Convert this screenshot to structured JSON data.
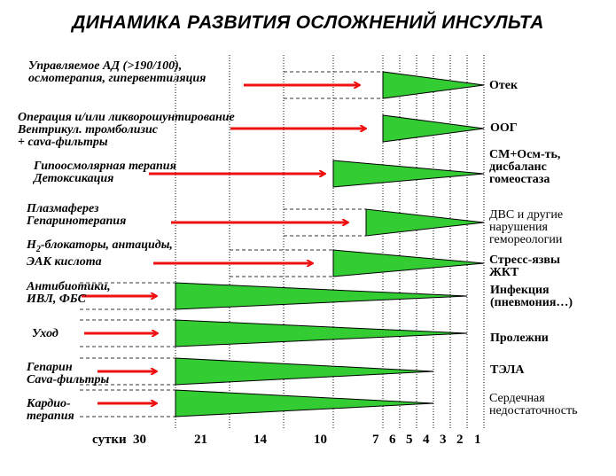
{
  "title": "ДИНАМИКА РАЗВИТИЯ ОСЛОЖНЕНИЙ ИНСУЛЬТА",
  "axis": {
    "label": "сутки",
    "ticks": [
      "30",
      "21",
      "14",
      "10",
      "7",
      "6",
      "5",
      "4",
      "3",
      "2",
      "1"
    ]
  },
  "rows": [
    {
      "therapy": [
        "Управляемое АД (>190/100),",
        "осмотерапия, гипервентиляция"
      ],
      "outcome": [
        "Отек"
      ]
    },
    {
      "therapy": [
        "Операция и/или ликворошунтирование",
        "Вентрикул. тромболизис",
        "+ cava-фильтры"
      ],
      "outcome": [
        "ООГ"
      ]
    },
    {
      "therapy": [
        "Гипоосмолярная терапия",
        "Детоксикация"
      ],
      "outcome": [
        "СМ+Осм-ть,",
        "дисбаланс",
        "гомеостаза"
      ]
    },
    {
      "therapy": [
        "Плазмаферез",
        "Гепаринотерапия"
      ],
      "outcome": [
        "ДВС и другие",
        "нарушения",
        "гемореологии"
      ]
    },
    {
      "therapy": [
        "Н2-блокаторы, антациды,",
        "ЭАК кислота"
      ],
      "outcome": [
        "Стресс-язвы",
        "ЖКТ"
      ]
    },
    {
      "therapy": [
        "Антибиотики,",
        "ИВЛ, ФБС"
      ],
      "outcome": [
        "Инфекция",
        "(пневмония…)"
      ]
    },
    {
      "therapy": [
        "Уход"
      ],
      "outcome": [
        "Пролежни"
      ]
    },
    {
      "therapy": [
        "Гепарин",
        "Cava-фильтры"
      ],
      "outcome": [
        "ТЭЛА"
      ]
    },
    {
      "therapy": [
        "Кардио-",
        "терапия"
      ],
      "outcome": [
        "Сердечная",
        "недостаточность"
      ]
    }
  ],
  "colors": {
    "wedge": "#33cc33",
    "arrow": "#ee1111",
    "grid": "#000000"
  }
}
